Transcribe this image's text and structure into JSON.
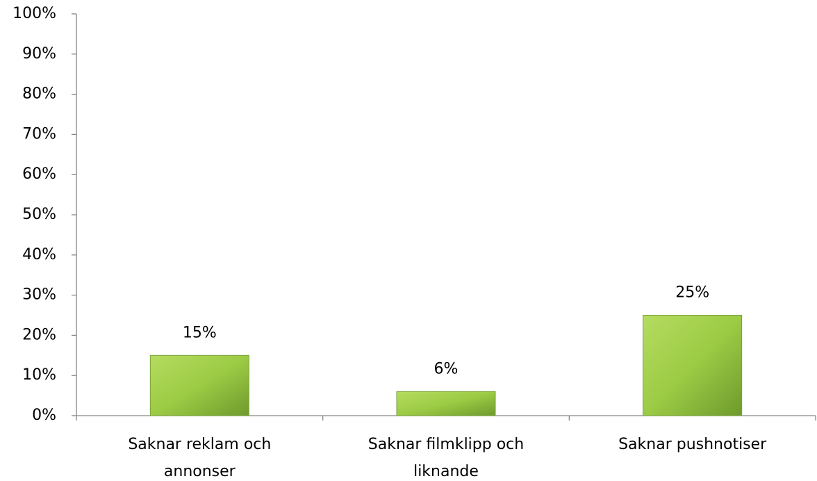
{
  "chart_data": {
    "type": "bar",
    "categories": [
      "Saknar reklam och annonser",
      "Saknar filmklipp och liknande",
      "Saknar pushnotiser"
    ],
    "values": [
      15,
      6,
      25
    ],
    "value_labels": [
      "15%",
      "6%",
      "25%"
    ],
    "color": "#8dbb3c",
    "ylim": [
      0,
      100
    ],
    "yticks": [
      {
        "value": 0,
        "label": "0%"
      },
      {
        "value": 10,
        "label": "10%"
      },
      {
        "value": 20,
        "label": "20%"
      },
      {
        "value": 30,
        "label": "30%"
      },
      {
        "value": 40,
        "label": "40%"
      },
      {
        "value": 50,
        "label": "50%"
      },
      {
        "value": 60,
        "label": "60%"
      },
      {
        "value": 70,
        "label": "70%"
      },
      {
        "value": 80,
        "label": "80%"
      },
      {
        "value": 90,
        "label": "90%"
      },
      {
        "value": 100,
        "label": "100%"
      }
    ],
    "grid": false
  }
}
